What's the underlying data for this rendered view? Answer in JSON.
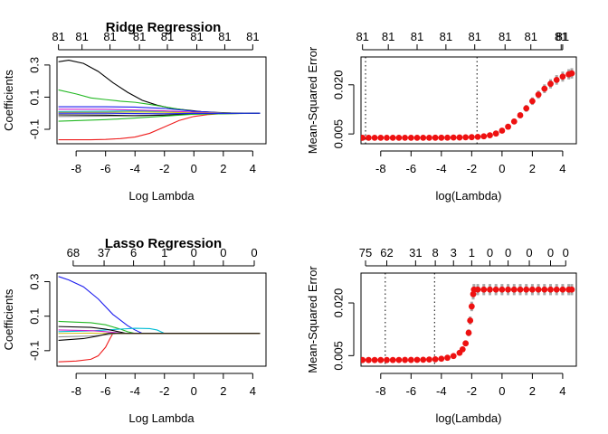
{
  "chart_data": [
    {
      "type": "line",
      "title": "Ridge Regression",
      "xlabel": "Log Lambda",
      "ylabel": "Coefficients",
      "xlim": [
        -9.3,
        4.9
      ],
      "ylim": [
        -0.19,
        0.35
      ],
      "xticks": [
        -8,
        -6,
        -4,
        -2,
        0,
        2,
        4
      ],
      "yticks": [
        -0.1,
        0.1,
        0.3
      ],
      "top_axis": {
        "ticks": [
          -9.2,
          -7.6,
          -5.7,
          -3.7,
          -1.8,
          0.2,
          2.1,
          4.0
        ],
        "labels": [
          "81",
          "81",
          "81",
          "81",
          "81",
          "81",
          "81",
          "81"
        ]
      },
      "series": [
        {
          "color": "#000000",
          "points": [
            [
              -9.2,
              0.32
            ],
            [
              -8.5,
              0.33
            ],
            [
              -7.5,
              0.31
            ],
            [
              -6.5,
              0.26
            ],
            [
              -5.5,
              0.19
            ],
            [
              -4.5,
              0.13
            ],
            [
              -3.5,
              0.08
            ],
            [
              -2.5,
              0.05
            ],
            [
              -1.5,
              0.03
            ],
            [
              -0.5,
              0.02
            ],
            [
              0.5,
              0.01
            ],
            [
              1.5,
              0.005
            ],
            [
              2.5,
              0.002
            ],
            [
              4.5,
              0.0
            ]
          ]
        },
        {
          "color": "#22b822",
          "points": [
            [
              -9.2,
              0.145
            ],
            [
              -8,
              0.12
            ],
            [
              -7,
              0.095
            ],
            [
              -6,
              0.085
            ],
            [
              -5,
              0.075
            ],
            [
              -4,
              0.068
            ],
            [
              -3,
              0.055
            ],
            [
              -2,
              0.04
            ],
            [
              -1,
              0.025
            ],
            [
              0,
              0.012
            ],
            [
              1,
              0.005
            ],
            [
              2,
              0.002
            ],
            [
              4.5,
              0.0
            ]
          ]
        },
        {
          "color": "#ee1c1c",
          "points": [
            [
              -9.2,
              -0.165
            ],
            [
              -8,
              -0.165
            ],
            [
              -7,
              -0.165
            ],
            [
              -6,
              -0.163
            ],
            [
              -5,
              -0.158
            ],
            [
              -4,
              -0.148
            ],
            [
              -3,
              -0.125
            ],
            [
              -2,
              -0.085
            ],
            [
              -1,
              -0.045
            ],
            [
              0,
              -0.02
            ],
            [
              1,
              -0.008
            ],
            [
              2,
              -0.002
            ],
            [
              4.5,
              0.0
            ]
          ]
        },
        {
          "color": "#1c1cee",
          "points": [
            [
              -9.2,
              0.04
            ],
            [
              -6,
              0.04
            ],
            [
              -4,
              0.038
            ],
            [
              -2,
              0.03
            ],
            [
              0,
              0.012
            ],
            [
              2,
              0.002
            ],
            [
              4.5,
              0.0
            ]
          ]
        },
        {
          "color": "#00bcd4",
          "points": [
            [
              -9.2,
              0.01
            ],
            [
              -6,
              0.012
            ],
            [
              -4,
              0.014
            ],
            [
              -2,
              0.012
            ],
            [
              0,
              0.005
            ],
            [
              2,
              0.001
            ],
            [
              4.5,
              0.0
            ]
          ]
        },
        {
          "color": "#cc22cc",
          "points": [
            [
              -9.2,
              0.025
            ],
            [
              -6,
              0.024
            ],
            [
              -4,
              0.02
            ],
            [
              -2,
              0.015
            ],
            [
              0,
              0.006
            ],
            [
              2,
              0.001
            ],
            [
              4.5,
              0.0
            ]
          ]
        },
        {
          "color": "#d4c21a",
          "points": [
            [
              -9.2,
              0.005
            ],
            [
              -6,
              0.006
            ],
            [
              -4,
              0.008
            ],
            [
              -2,
              0.006
            ],
            [
              0,
              0.002
            ],
            [
              4.5,
              0.0
            ]
          ]
        },
        {
          "color": "#888888",
          "points": [
            [
              -9.2,
              -0.02
            ],
            [
              -6,
              -0.018
            ],
            [
              -4,
              -0.015
            ],
            [
              -2,
              -0.01
            ],
            [
              0,
              -0.004
            ],
            [
              2,
              -0.001
            ],
            [
              4.5,
              0.0
            ]
          ]
        },
        {
          "color": "#000000",
          "points": [
            [
              -9.2,
              -0.01
            ],
            [
              -6,
              -0.012
            ],
            [
              -4,
              -0.015
            ],
            [
              -2,
              -0.012
            ],
            [
              0,
              -0.005
            ],
            [
              4.5,
              0.0
            ]
          ]
        },
        {
          "color": "#22b822",
          "points": [
            [
              -9.2,
              -0.05
            ],
            [
              -6,
              -0.04
            ],
            [
              -4,
              -0.03
            ],
            [
              -2,
              -0.018
            ],
            [
              0,
              -0.006
            ],
            [
              4.5,
              0.0
            ]
          ]
        },
        {
          "color": "#1c1cee",
          "points": [
            [
              -9.2,
              0.0
            ],
            [
              -6,
              0.0
            ],
            [
              -4,
              -0.002
            ],
            [
              -2,
              -0.003
            ],
            [
              0,
              -0.001
            ],
            [
              4.5,
              0.0
            ]
          ]
        }
      ]
    },
    {
      "type": "scatter",
      "title": "",
      "xlabel": "log(Lambda)",
      "ylabel": "Mean-Squared Error",
      "xlim": [
        -9.3,
        4.9
      ],
      "ylim": [
        0.002,
        0.0285
      ],
      "xticks": [
        -8,
        -6,
        -4,
        -2,
        0,
        2,
        4
      ],
      "yticks": [
        0.005,
        0.02
      ],
      "ytick_labels": [
        "0.005",
        "0.020"
      ],
      "top_axis": {
        "ticks": [
          -9.2,
          -7.5,
          -5.6,
          -3.7,
          -1.8,
          0.2,
          1.9,
          3.9,
          4.0
        ],
        "labels": [
          "81",
          "81",
          "81",
          "81",
          "81",
          "81",
          "81",
          "81",
          "81"
        ]
      },
      "vlines": [
        -9.0,
        -1.65
      ],
      "cv_points": [
        [
          -9.2,
          0.00382
        ],
        [
          -8.8,
          0.00382
        ],
        [
          -8.4,
          0.00382
        ],
        [
          -8.0,
          0.00382
        ],
        [
          -7.6,
          0.00382
        ],
        [
          -7.2,
          0.00382
        ],
        [
          -6.8,
          0.00382
        ],
        [
          -6.4,
          0.00382
        ],
        [
          -6.0,
          0.00382
        ],
        [
          -5.6,
          0.00382
        ],
        [
          -5.2,
          0.00383
        ],
        [
          -4.8,
          0.00383
        ],
        [
          -4.4,
          0.00384
        ],
        [
          -4.0,
          0.00385
        ],
        [
          -3.6,
          0.00387
        ],
        [
          -3.2,
          0.00389
        ],
        [
          -2.8,
          0.00392
        ],
        [
          -2.4,
          0.00396
        ],
        [
          -2.0,
          0.00402
        ],
        [
          -1.6,
          0.00411
        ],
        [
          -1.2,
          0.00428
        ],
        [
          -0.8,
          0.00458
        ],
        [
          -0.4,
          0.00512
        ],
        [
          0.0,
          0.006
        ],
        [
          0.4,
          0.0072
        ],
        [
          0.8,
          0.0088
        ],
        [
          1.2,
          0.0107
        ],
        [
          1.6,
          0.0128
        ],
        [
          2.0,
          0.015
        ],
        [
          2.4,
          0.017
        ],
        [
          2.8,
          0.0188
        ],
        [
          3.2,
          0.0203
        ],
        [
          3.6,
          0.0215
        ],
        [
          4.0,
          0.0225
        ],
        [
          4.4,
          0.0232
        ],
        [
          4.6,
          0.0235
        ]
      ]
    },
    {
      "type": "line",
      "title": "Lasso Regression",
      "xlabel": "Log Lambda",
      "ylabel": "Coefficients",
      "xlim": [
        -9.3,
        4.9
      ],
      "ylim": [
        -0.19,
        0.35
      ],
      "xticks": [
        -8,
        -6,
        -4,
        -2,
        0,
        2,
        4
      ],
      "yticks": [
        -0.1,
        0.1,
        0.3
      ],
      "top_axis": {
        "ticks": [
          -8.2,
          -6.1,
          -4.1,
          -2.0,
          0.0,
          2.0,
          4.1
        ],
        "labels": [
          "68",
          "37",
          "6",
          "1",
          "0",
          "0",
          "0"
        ]
      },
      "series": [
        {
          "color": "#1c1cee",
          "points": [
            [
              -9.2,
              0.33
            ],
            [
              -8.5,
              0.31
            ],
            [
              -7.5,
              0.27
            ],
            [
              -6.5,
              0.2
            ],
            [
              -5.5,
              0.11
            ],
            [
              -4.5,
              0.045
            ],
            [
              -4.0,
              0.02
            ],
            [
              -3.5,
              0.0
            ],
            [
              4.5,
              0.0
            ]
          ]
        },
        {
          "color": "#22b822",
          "points": [
            [
              -9.2,
              0.07
            ],
            [
              -8,
              0.065
            ],
            [
              -7,
              0.062
            ],
            [
              -6,
              0.05
            ],
            [
              -5,
              0.025
            ],
            [
              -4.5,
              0.01
            ],
            [
              -4.0,
              0.0
            ],
            [
              4.5,
              0.0
            ]
          ]
        },
        {
          "color": "#00bcd4",
          "points": [
            [
              -9.2,
              0.01
            ],
            [
              -7,
              0.015
            ],
            [
              -5,
              0.025
            ],
            [
              -4,
              0.03
            ],
            [
              -3,
              0.028
            ],
            [
              -2.5,
              0.02
            ],
            [
              -2.0,
              0.0
            ],
            [
              4.5,
              0.0
            ]
          ]
        },
        {
          "color": "#ee1c1c",
          "points": [
            [
              -9.2,
              -0.165
            ],
            [
              -8,
              -0.16
            ],
            [
              -7,
              -0.15
            ],
            [
              -6.5,
              -0.13
            ],
            [
              -6,
              -0.08
            ],
            [
              -5.7,
              -0.03
            ],
            [
              -5.5,
              0.0
            ],
            [
              4.5,
              0.0
            ]
          ]
        },
        {
          "color": "#000000",
          "points": [
            [
              -9.2,
              0.04
            ],
            [
              -7,
              0.035
            ],
            [
              -6,
              0.025
            ],
            [
              -5,
              0.008
            ],
            [
              -4.6,
              0.0
            ],
            [
              4.5,
              0.0
            ]
          ]
        },
        {
          "color": "#cc22cc",
          "points": [
            [
              -9.2,
              0.02
            ],
            [
              -7,
              0.016
            ],
            [
              -6,
              0.01
            ],
            [
              -5,
              0.002
            ],
            [
              -4.8,
              0.0
            ],
            [
              4.5,
              0.0
            ]
          ]
        },
        {
          "color": "#888888",
          "points": [
            [
              -9.2,
              -0.02
            ],
            [
              -7,
              -0.015
            ],
            [
              -6,
              -0.008
            ],
            [
              -5.2,
              0.0
            ],
            [
              4.5,
              0.0
            ]
          ]
        },
        {
          "color": "#d4c21a",
          "points": [
            [
              -9.2,
              0.0
            ],
            [
              -7,
              0.002
            ],
            [
              -6,
              0.0
            ],
            [
              4.5,
              0.0
            ]
          ]
        },
        {
          "color": "#000000",
          "points": [
            [
              -9.2,
              -0.04
            ],
            [
              -7.5,
              -0.03
            ],
            [
              -6.5,
              -0.015
            ],
            [
              -5.8,
              0.0
            ],
            [
              4.5,
              0.0
            ]
          ]
        }
      ]
    },
    {
      "type": "scatter",
      "title": "",
      "xlabel": "log(Lambda)",
      "ylabel": "Mean-Squared Error",
      "xlim": [
        -9.3,
        4.9
      ],
      "ylim": [
        0.002,
        0.0285
      ],
      "xticks": [
        -8,
        -6,
        -4,
        -2,
        0,
        2,
        4
      ],
      "yticks": [
        0.005,
        0.02
      ],
      "ytick_labels": [
        "0.005",
        "0.020"
      ],
      "top_axis": {
        "ticks": [
          -9.0,
          -7.6,
          -5.7,
          -4.4,
          -3.2,
          -2.0,
          -0.8,
          0.4,
          1.8,
          3.2,
          4.2
        ],
        "labels": [
          "75",
          "62",
          "31",
          "8",
          "3",
          "1",
          "0",
          "0",
          "0",
          "0",
          "0"
        ]
      },
      "vlines": [
        -7.7,
        -4.45
      ],
      "cv_points": [
        [
          -9.2,
          0.00375
        ],
        [
          -8.8,
          0.00375
        ],
        [
          -8.4,
          0.00375
        ],
        [
          -8.0,
          0.00375
        ],
        [
          -7.6,
          0.00375
        ],
        [
          -7.2,
          0.00376
        ],
        [
          -6.8,
          0.00377
        ],
        [
          -6.4,
          0.00378
        ],
        [
          -6.0,
          0.00379
        ],
        [
          -5.6,
          0.00381
        ],
        [
          -5.2,
          0.00384
        ],
        [
          -4.8,
          0.00389
        ],
        [
          -4.4,
          0.00397
        ],
        [
          -4.0,
          0.00412
        ],
        [
          -3.6,
          0.0044
        ],
        [
          -3.2,
          0.0049
        ],
        [
          -2.8,
          0.0058
        ],
        [
          -2.6,
          0.0068
        ],
        [
          -2.4,
          0.0085
        ],
        [
          -2.2,
          0.0115
        ],
        [
          -2.1,
          0.015
        ],
        [
          -2.0,
          0.019
        ],
        [
          -1.9,
          0.0225
        ],
        [
          -1.85,
          0.0238
        ],
        [
          -1.6,
          0.0238
        ],
        [
          -1.2,
          0.0238
        ],
        [
          -0.8,
          0.0238
        ],
        [
          -0.4,
          0.0238
        ],
        [
          0.0,
          0.0238
        ],
        [
          0.4,
          0.0238
        ],
        [
          0.8,
          0.0238
        ],
        [
          1.2,
          0.0238
        ],
        [
          1.6,
          0.0238
        ],
        [
          2.0,
          0.0238
        ],
        [
          2.4,
          0.0238
        ],
        [
          2.8,
          0.0238
        ],
        [
          3.2,
          0.0238
        ],
        [
          3.6,
          0.0238
        ],
        [
          4.0,
          0.0238
        ],
        [
          4.4,
          0.0238
        ],
        [
          4.6,
          0.0238
        ]
      ]
    }
  ]
}
